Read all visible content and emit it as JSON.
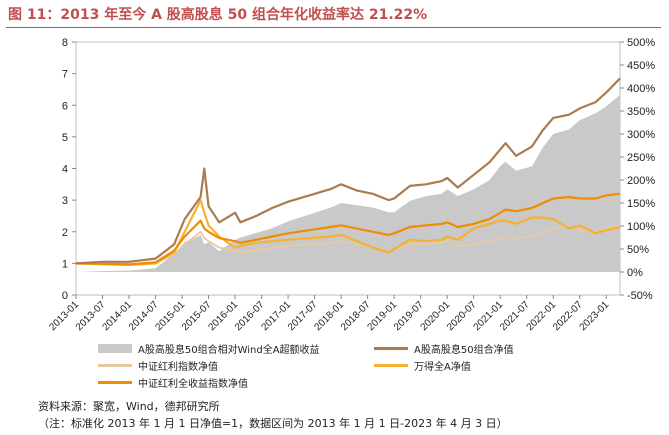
{
  "title": "图 11：2013 年至今 A 股高股息 50 组合年化收益率达 21.22%",
  "source": "资料来源：聚宽，Wind，德邦研究所",
  "note": "（注：标准化 2013 年 1 月 1 日净值=1，数据区间为 2013 年 1 月 1 日-2023 年 4 月 3 日）",
  "colors": {
    "title": "#c0504d",
    "excess": "#c9c9c9",
    "portfolio": "#a97c50",
    "dividend_index": "#e8c9a0",
    "wind_a": "#f5b130",
    "dividend_total": "#f08c00"
  },
  "chart_data": {
    "type": "line",
    "x_ticks": [
      "2013-01",
      "2013-07",
      "2014-01",
      "2014-07",
      "2015-01",
      "2015-07",
      "2016-01",
      "2016-07",
      "2017-01",
      "2017-07",
      "2018-01",
      "2018-07",
      "2019-01",
      "2019-07",
      "2020-01",
      "2020-07",
      "2021-01",
      "2021-07",
      "2022-01",
      "2022-07",
      "2023-01"
    ],
    "ylim_left": [
      0,
      8
    ],
    "yticks_left": [
      "0",
      "1",
      "2",
      "3",
      "4",
      "5",
      "6",
      "7",
      "8"
    ],
    "ylim_right": [
      -50,
      500
    ],
    "yticks_right": [
      "-50%",
      "0%",
      "50%",
      "100%",
      "150%",
      "200%",
      "250%",
      "300%",
      "350%",
      "400%",
      "450%",
      "500%"
    ],
    "x": [
      2013.0,
      2013.5,
      2014.0,
      2014.5,
      2014.85,
      2015.05,
      2015.35,
      2015.42,
      2015.5,
      2015.7,
      2016.0,
      2016.1,
      2016.4,
      2016.7,
      2017.0,
      2017.4,
      2017.8,
      2018.0,
      2018.3,
      2018.6,
      2018.9,
      2019.0,
      2019.3,
      2019.6,
      2019.9,
      2020.0,
      2020.2,
      2020.5,
      2020.8,
      2021.0,
      2021.1,
      2021.3,
      2021.6,
      2021.8,
      2022.0,
      2022.3,
      2022.5,
      2022.8,
      2023.0,
      2023.26
    ],
    "series": [
      {
        "name": "A股高股息50组合相对Wind全A超额收益",
        "type": "area",
        "axis": "right",
        "values": [
          0,
          2,
          3,
          8,
          40,
          65,
          80,
          60,
          65,
          45,
          70,
          75,
          85,
          95,
          110,
          125,
          140,
          150,
          145,
          140,
          130,
          130,
          155,
          165,
          170,
          180,
          165,
          180,
          200,
          230,
          240,
          220,
          230,
          270,
          300,
          310,
          330,
          345,
          360,
          385
        ]
      },
      {
        "name": "A股高股息50组合净值",
        "type": "line",
        "axis": "left",
        "values": [
          1.0,
          1.05,
          1.05,
          1.15,
          1.6,
          2.4,
          3.1,
          4.0,
          2.8,
          2.3,
          2.6,
          2.3,
          2.5,
          2.75,
          2.95,
          3.15,
          3.35,
          3.5,
          3.3,
          3.2,
          3.0,
          3.05,
          3.45,
          3.5,
          3.6,
          3.7,
          3.4,
          3.8,
          4.2,
          4.6,
          4.8,
          4.4,
          4.7,
          5.2,
          5.6,
          5.7,
          5.9,
          6.1,
          6.4,
          6.85
        ]
      },
      {
        "name": "中证红利指数净值",
        "type": "line",
        "axis": "left",
        "values": [
          1.0,
          0.98,
          0.95,
          1.0,
          1.3,
          1.6,
          2.0,
          1.8,
          1.7,
          1.5,
          1.4,
          1.35,
          1.4,
          1.5,
          1.55,
          1.6,
          1.65,
          1.7,
          1.6,
          1.5,
          1.4,
          1.45,
          1.6,
          1.6,
          1.65,
          1.7,
          1.55,
          1.6,
          1.7,
          1.8,
          1.85,
          1.8,
          1.85,
          1.95,
          2.1,
          2.15,
          2.05,
          2.0,
          2.1,
          2.2
        ]
      },
      {
        "name": "万得全A净值",
        "type": "line",
        "axis": "left",
        "values": [
          1.0,
          0.97,
          0.95,
          1.0,
          1.35,
          2.0,
          3.0,
          2.6,
          2.2,
          1.85,
          1.5,
          1.55,
          1.65,
          1.7,
          1.75,
          1.8,
          1.85,
          1.9,
          1.7,
          1.5,
          1.35,
          1.45,
          1.75,
          1.7,
          1.75,
          1.85,
          1.75,
          2.1,
          2.25,
          2.35,
          2.35,
          2.25,
          2.45,
          2.45,
          2.4,
          2.1,
          2.2,
          1.95,
          2.05,
          2.15
        ]
      },
      {
        "name": "中证红利全收益指数净值",
        "type": "line",
        "axis": "left",
        "values": [
          1.0,
          0.99,
          0.97,
          1.03,
          1.4,
          1.85,
          2.35,
          2.1,
          2.0,
          1.8,
          1.7,
          1.65,
          1.75,
          1.85,
          1.95,
          2.05,
          2.15,
          2.2,
          2.1,
          2.0,
          1.9,
          1.95,
          2.15,
          2.2,
          2.25,
          2.3,
          2.15,
          2.25,
          2.4,
          2.6,
          2.7,
          2.65,
          2.75,
          2.9,
          3.05,
          3.1,
          3.05,
          3.05,
          3.15,
          3.2
        ]
      }
    ],
    "legend": [
      {
        "label": "A股高股息50组合相对Wind全A超额收益",
        "kind": "area"
      },
      {
        "label": "A股高股息50组合净值",
        "kind": "line"
      },
      {
        "label": "中证红利指数净值",
        "kind": "line"
      },
      {
        "label": "万得全A净值",
        "kind": "line"
      },
      {
        "label": "中证红利全收益指数净值",
        "kind": "line"
      }
    ]
  }
}
